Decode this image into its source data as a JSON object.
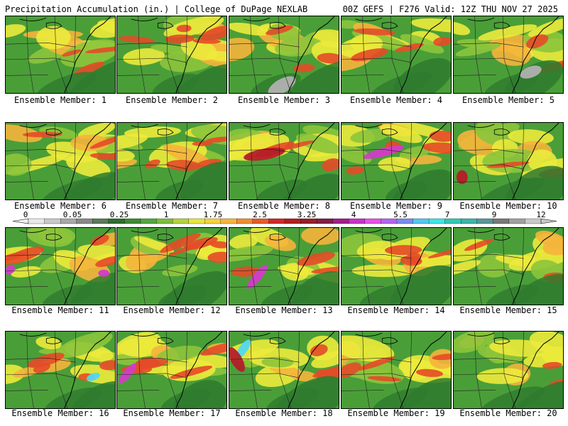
{
  "header": {
    "left": "Precipitation Accumulation (in.) | College of DuPage NEXLAB",
    "right": "00Z GEFS | F276 Valid: 12Z THU NOV 27 2025"
  },
  "caption_prefix": "Ensemble Member: ",
  "members": [
    1,
    2,
    3,
    4,
    5,
    6,
    7,
    8,
    9,
    10,
    11,
    12,
    13,
    14,
    15,
    16,
    17,
    18,
    19,
    20
  ],
  "colorbar": {
    "tick_labels": [
      "0",
      "0.05",
      "0.25",
      "1",
      "1.75",
      "2.5",
      "3.25",
      "4",
      "5.5",
      "7",
      "9",
      "12"
    ],
    "colors": [
      "#e8e8e8",
      "#c8c8c8",
      "#a8a8a8",
      "#888888",
      "#5a7a5a",
      "#2e6e2e",
      "#3c8c32",
      "#52a83c",
      "#7cbe3c",
      "#b4d23c",
      "#e6e63c",
      "#f5d23c",
      "#f5b43c",
      "#f08c32",
      "#e65a28",
      "#d22828",
      "#b41e1e",
      "#961e28",
      "#821e46",
      "#a01e8c",
      "#c832c8",
      "#e650e6",
      "#b464f0",
      "#788cf0",
      "#50c8f0",
      "#3ce6e6",
      "#32c8b4",
      "#3cb4aa",
      "#5a9696",
      "#787878",
      "#a0a0a0",
      "#c8c8c8"
    ]
  },
  "map_palette": {
    "low_gray": "#b0b0b0",
    "dark_green": "#2e7a2e",
    "green": "#4a9e38",
    "light_green": "#8cc43c",
    "yellow": "#ecea3c",
    "orange": "#f5b43c",
    "red": "#e64a28",
    "dark_red": "#b41e28",
    "magenta": "#d23cc8",
    "cyan": "#50d8f0",
    "coast": "#000000",
    "border": "#222222"
  }
}
